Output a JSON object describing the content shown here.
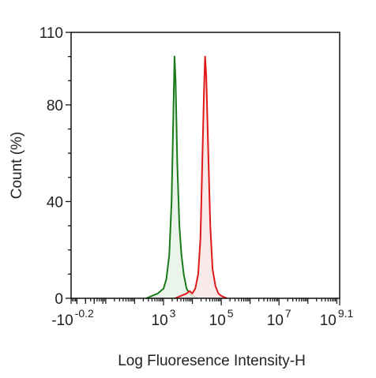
{
  "chart_data": {
    "type": "area",
    "title": "",
    "xlabel": "Log Fluoresence Intensity-H",
    "ylabel": "Count  (%)",
    "x_scale": "log",
    "xlim_exponent": [
      -0.2,
      9.1
    ],
    "ylim": [
      0,
      110
    ],
    "x_ticks": [
      {
        "base": "-10",
        "exp": "-0.2",
        "value": -0.2
      },
      {
        "base": "10",
        "exp": "3",
        "value": 3
      },
      {
        "base": "10",
        "exp": "5",
        "value": 5
      },
      {
        "base": "10",
        "exp": "7",
        "value": 7
      },
      {
        "base": "10",
        "exp": "9.1",
        "value": 9.1
      }
    ],
    "y_ticks": [
      {
        "label": "0",
        "value": 0
      },
      {
        "label": "40",
        "value": 40
      },
      {
        "label": "80",
        "value": 80
      },
      {
        "label": "110",
        "value": 110
      }
    ],
    "grid": false,
    "legend": "none",
    "series": [
      {
        "color": "#1a7a1a",
        "fill": "#e8f2e8",
        "points": [
          [
            2.4,
            0
          ],
          [
            2.6,
            1
          ],
          [
            2.8,
            2
          ],
          [
            3.0,
            4
          ],
          [
            3.1,
            8
          ],
          [
            3.2,
            18
          ],
          [
            3.28,
            40
          ],
          [
            3.34,
            75
          ],
          [
            3.38,
            100
          ],
          [
            3.42,
            90
          ],
          [
            3.48,
            55
          ],
          [
            3.55,
            30
          ],
          [
            3.62,
            18
          ],
          [
            3.7,
            10
          ],
          [
            3.8,
            4
          ],
          [
            3.9,
            2
          ],
          [
            4.0,
            1
          ],
          [
            4.2,
            0
          ]
        ]
      },
      {
        "color": "#e01818",
        "fill": "#f8e6e6",
        "points": [
          [
            3.4,
            0
          ],
          [
            3.6,
            1
          ],
          [
            3.8,
            2
          ],
          [
            3.9,
            3
          ],
          [
            4.0,
            2
          ],
          [
            4.1,
            4
          ],
          [
            4.2,
            10
          ],
          [
            4.28,
            25
          ],
          [
            4.34,
            55
          ],
          [
            4.4,
            85
          ],
          [
            4.44,
            100
          ],
          [
            4.48,
            92
          ],
          [
            4.55,
            60
          ],
          [
            4.62,
            30
          ],
          [
            4.7,
            12
          ],
          [
            4.8,
            5
          ],
          [
            4.9,
            2
          ],
          [
            5.0,
            1
          ],
          [
            5.2,
            0
          ]
        ]
      }
    ]
  }
}
